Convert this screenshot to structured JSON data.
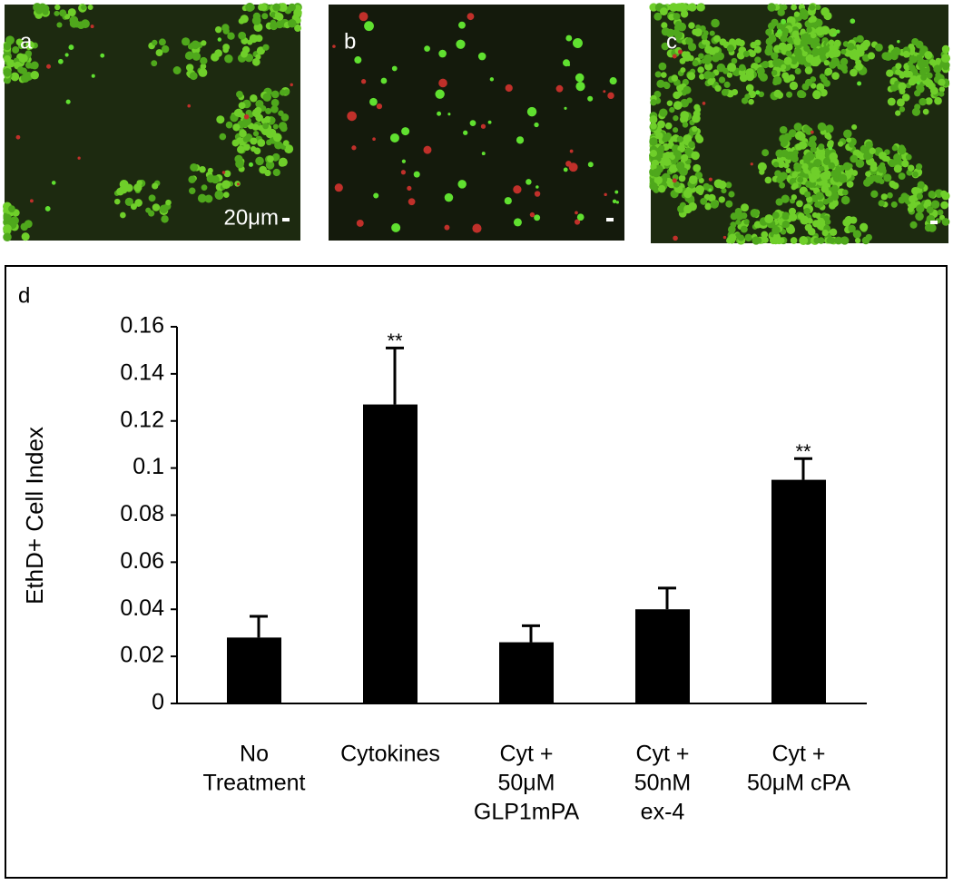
{
  "images": [
    {
      "label": "a",
      "scale_text": "20μm"
    },
    {
      "label": "b"
    },
    {
      "label": "c"
    }
  ],
  "chart_data": {
    "type": "bar",
    "panel_label": "d",
    "ylabel": "EthD+ Cell Index",
    "categories": [
      [
        "No",
        "Treatment"
      ],
      [
        "Cytokines"
      ],
      [
        "Cyt +",
        "50μM",
        "GLP1mPA"
      ],
      [
        "Cyt +",
        "50nM",
        "ex-4"
      ],
      [
        "Cyt +",
        "50μM cPA"
      ]
    ],
    "values": [
      0.028,
      0.127,
      0.026,
      0.04,
      0.095
    ],
    "errors": [
      0.009,
      0.024,
      0.007,
      0.009,
      0.009
    ],
    "color": "#000000",
    "annotations": [
      {
        "text": "**",
        "x": "Cytokines"
      },
      {
        "text": "**",
        "x": "Cyt + 50μM cPA"
      }
    ],
    "ylim": [
      0,
      0.16
    ],
    "yticks": [
      0,
      0.02,
      0.04,
      0.06,
      0.08,
      0.1,
      0.12,
      0.14,
      0.16
    ],
    "grid": false
  }
}
